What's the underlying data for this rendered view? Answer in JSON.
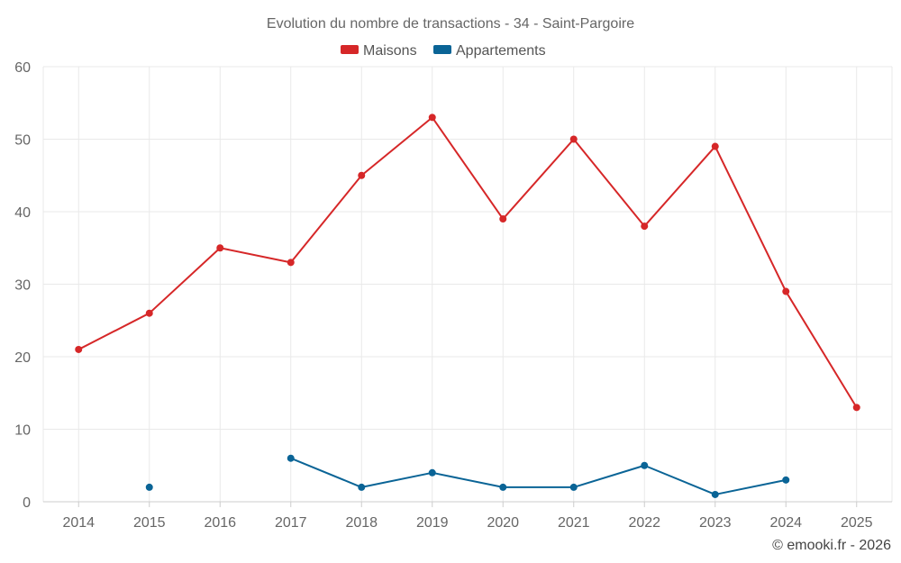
{
  "chart_data": {
    "type": "line",
    "title": "Evolution du nombre de transactions - 34 - Saint-Pargoire",
    "categories": [
      "2014",
      "2015",
      "2016",
      "2017",
      "2018",
      "2019",
      "2020",
      "2021",
      "2022",
      "2023",
      "2024",
      "2025"
    ],
    "series": [
      {
        "name": "Maisons",
        "color": "#d62728",
        "values": [
          21,
          26,
          35,
          33,
          45,
          53,
          39,
          50,
          38,
          49,
          29,
          13
        ]
      },
      {
        "name": "Appartements",
        "color": "#0a6496",
        "values": [
          null,
          2,
          null,
          6,
          2,
          4,
          2,
          2,
          5,
          1,
          3,
          null
        ]
      }
    ],
    "ylim": [
      0,
      60
    ],
    "yticks": [
      "0",
      "10",
      "20",
      "30",
      "40",
      "50",
      "60"
    ],
    "legend_position": "top-center",
    "grid": true,
    "credit": "© emooki.fr - 2026"
  }
}
